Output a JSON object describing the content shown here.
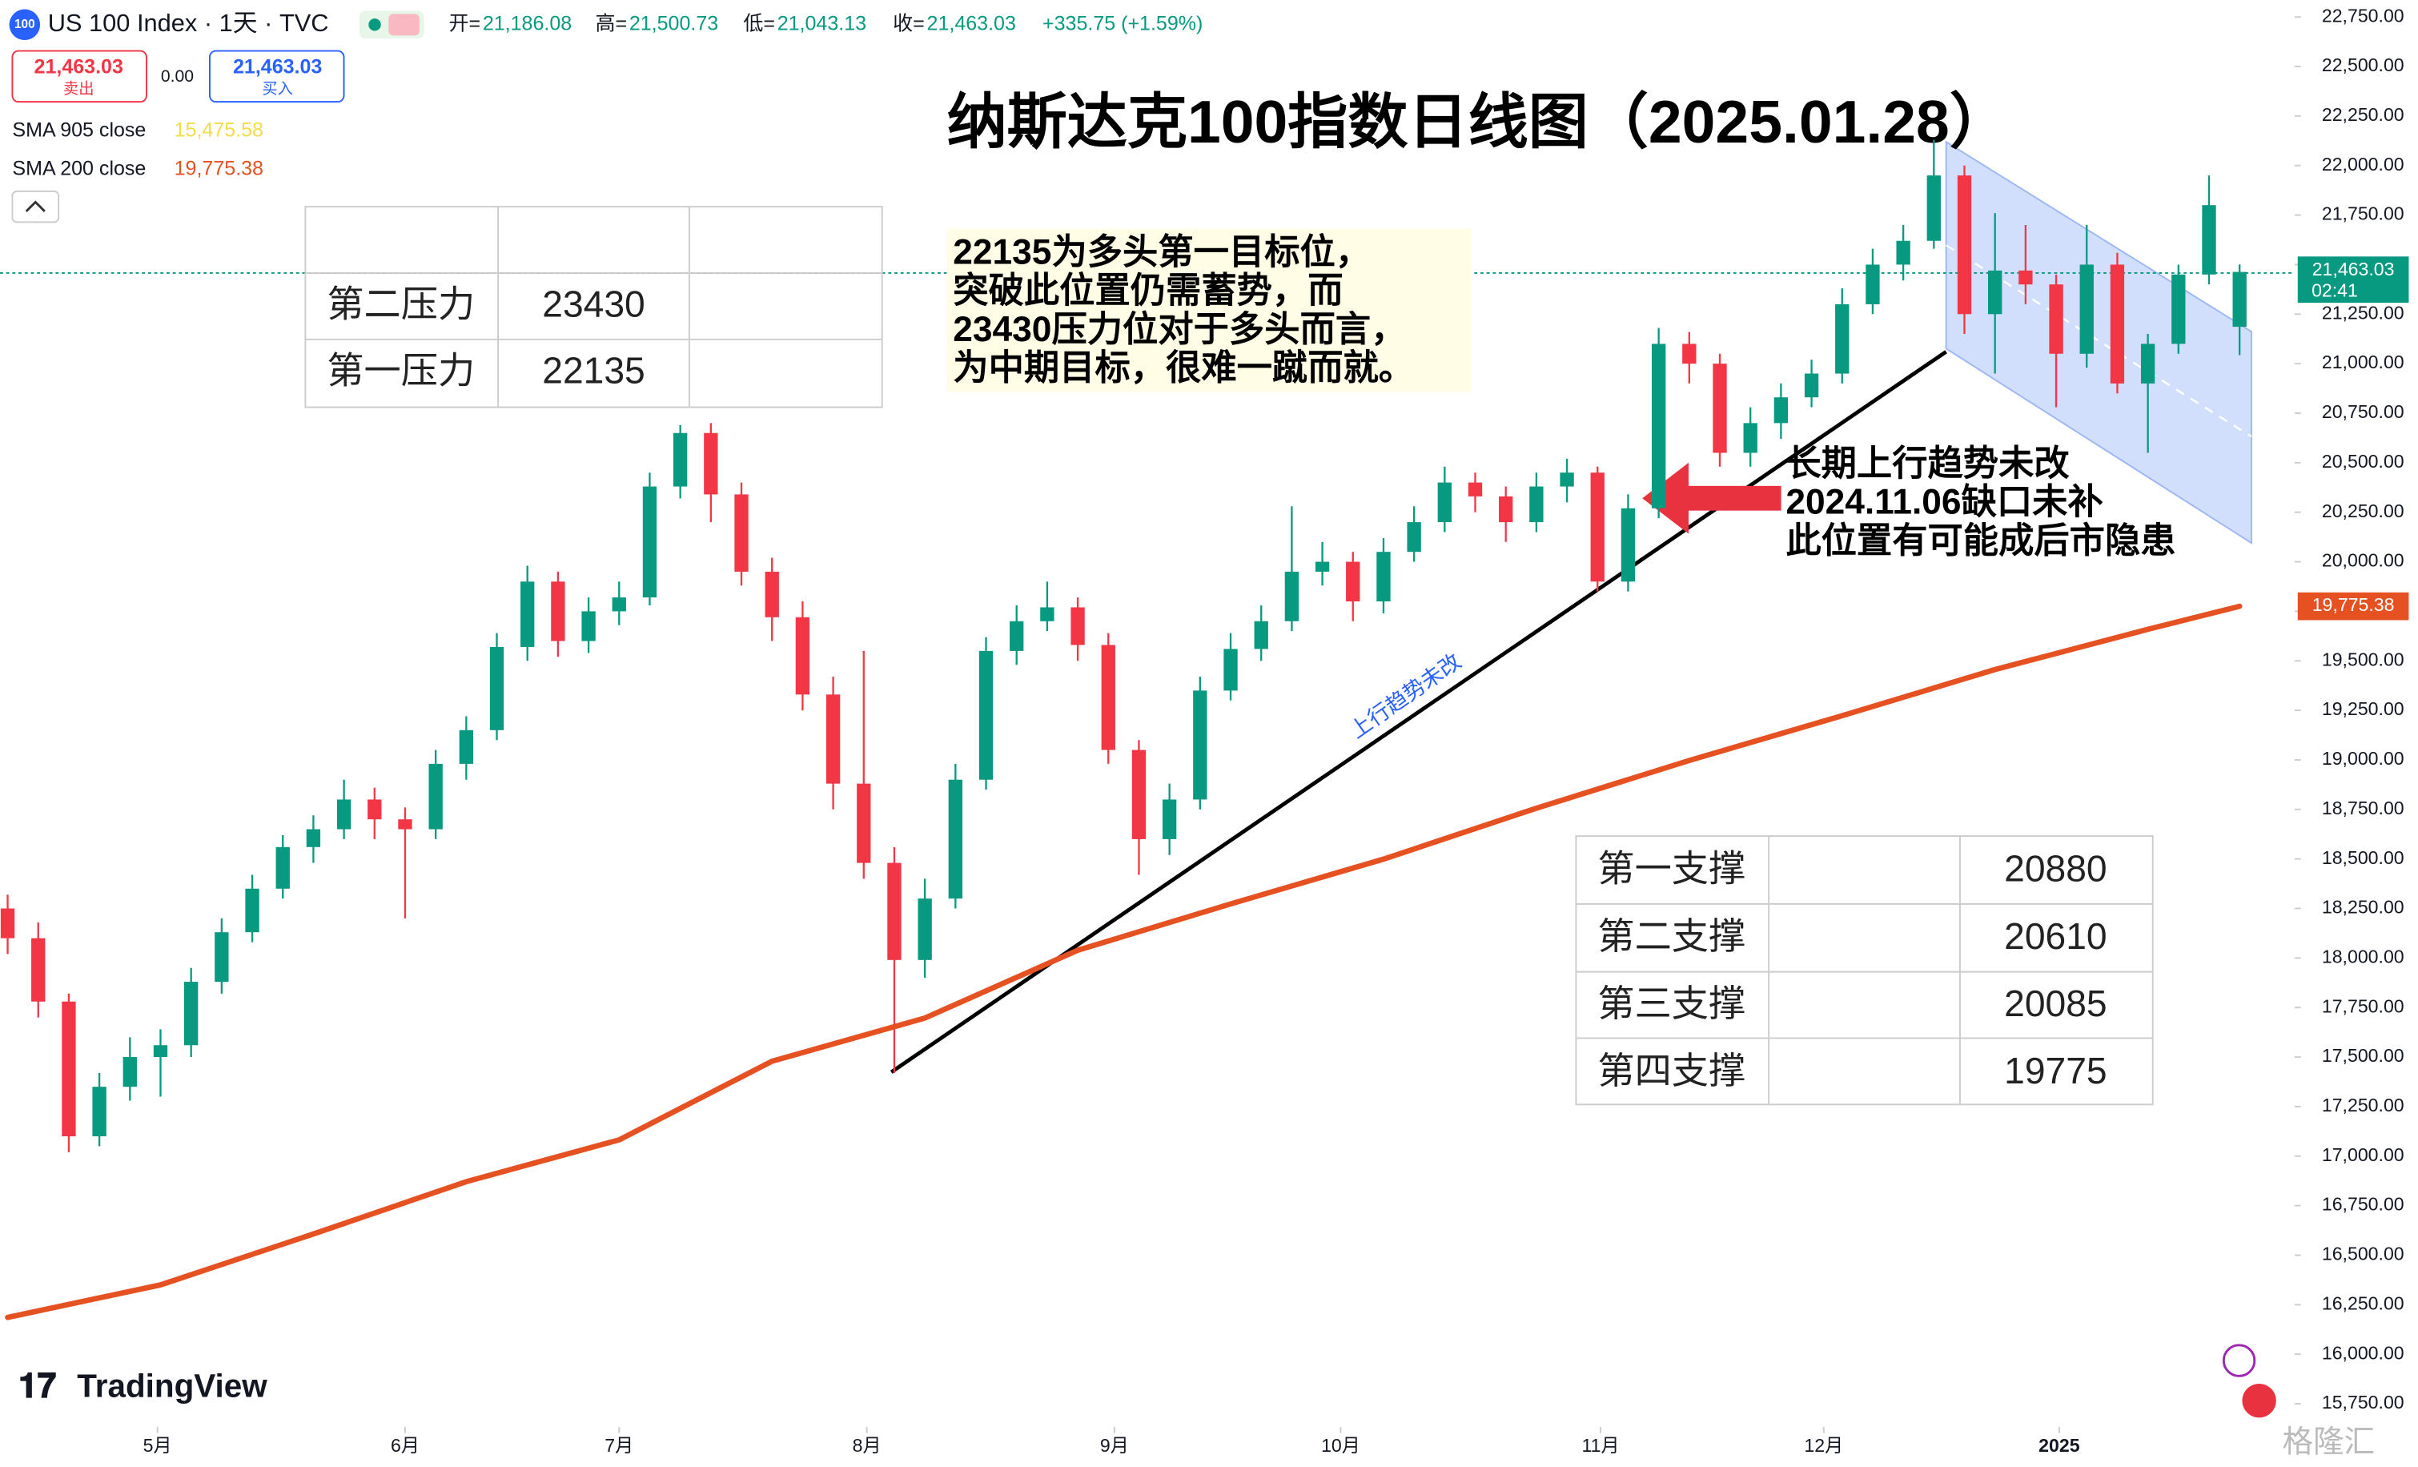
{
  "header": {
    "logo": "100",
    "symbol": "US 100 Index · 1天 · TVC",
    "ohlc": [
      [
        "开=",
        "21,186.08"
      ],
      [
        "高=",
        "21,500.73"
      ],
      [
        "低=",
        "21,043.13"
      ],
      [
        "收=",
        "21,463.03"
      ]
    ],
    "change": "+335.75 (+1.59%)",
    "sell_price": "21,463.03",
    "sell": "卖出",
    "spread": "0.00",
    "buy_price": "21,463.03",
    "buy": "买入",
    "indicators": [
      {
        "name": "SMA 905 close",
        "value": "15,475.58",
        "color": "#f2dc4b"
      },
      {
        "name": "SMA 200 close",
        "value": "19,775.38",
        "color": "#e65122"
      }
    ]
  },
  "chart_data": {
    "type": "candlestick",
    "title": "纳斯达克100指数日线图（2025.01.28）",
    "up_color": "#089981",
    "down_color": "#f23645",
    "xlim": [
      -0.25,
      74.8
    ],
    "xticks": [
      {
        "value": 4.9,
        "label": "5月"
      },
      {
        "value": 13,
        "label": "6月"
      },
      {
        "value": 20,
        "label": "7月"
      },
      {
        "value": 28.1,
        "label": "8月"
      },
      {
        "value": 36.2,
        "label": "9月"
      },
      {
        "value": 43.6,
        "label": "10月"
      },
      {
        "value": 52.1,
        "label": "11月"
      },
      {
        "value": 59.4,
        "label": "12月"
      },
      {
        "value": 67.1,
        "label": "2025"
      }
    ],
    "ylim": [
      15750,
      22750
    ],
    "yticks": [
      {
        "value": 15750,
        "label": "15,750.00"
      },
      {
        "value": 16000,
        "label": "16,000.00"
      },
      {
        "value": 16250,
        "label": "16,250.00"
      },
      {
        "value": 16500,
        "label": "16,500.00"
      },
      {
        "value": 16750,
        "label": "16,750.00"
      },
      {
        "value": 17000,
        "label": "17,000.00"
      },
      {
        "value": 17250,
        "label": "17,250.00"
      },
      {
        "value": 17500,
        "label": "17,500.00"
      },
      {
        "value": 17750,
        "label": "17,750.00"
      },
      {
        "value": 18000,
        "label": "18,000.00"
      },
      {
        "value": 18250,
        "label": "18,250.00"
      },
      {
        "value": 18500,
        "label": "18,500.00"
      },
      {
        "value": 18750,
        "label": "18,750.00"
      },
      {
        "value": 19000,
        "label": "19,000.00"
      },
      {
        "value": 19250,
        "label": "19,250.00"
      },
      {
        "value": 19500,
        "label": "19,500.00"
      },
      {
        "value": 19750,
        "label": "19,750.00"
      },
      {
        "value": 20000,
        "label": "20,000.00"
      },
      {
        "value": 20250,
        "label": "20,250.00"
      },
      {
        "value": 20500,
        "label": "20,500.00"
      },
      {
        "value": 20750,
        "label": "20,750.00"
      },
      {
        "value": 21000,
        "label": "21,000.00"
      },
      {
        "value": 21250,
        "label": "21,250.00"
      },
      {
        "value": 21500,
        "label": "21,500.00"
      },
      {
        "value": 21750,
        "label": "21,750.00"
      },
      {
        "value": 22000,
        "label": "22,000.00"
      },
      {
        "value": 22250,
        "label": "22,250.00"
      },
      {
        "value": 22500,
        "label": "22,500.00"
      },
      {
        "value": 22750,
        "label": "22,750.00"
      }
    ],
    "candles": [
      [
        18250,
        18320,
        18020,
        18100
      ],
      [
        18100,
        18180,
        17700,
        17780
      ],
      [
        17780,
        17820,
        17020,
        17100
      ],
      [
        17100,
        17420,
        17050,
        17350
      ],
      [
        17350,
        17600,
        17280,
        17500
      ],
      [
        17500,
        17640,
        17300,
        17560
      ],
      [
        17560,
        17950,
        17500,
        17880
      ],
      [
        17880,
        18200,
        17820,
        18130
      ],
      [
        18130,
        18420,
        18080,
        18350
      ],
      [
        18350,
        18620,
        18300,
        18560
      ],
      [
        18560,
        18720,
        18480,
        18650
      ],
      [
        18650,
        18900,
        18600,
        18800
      ],
      [
        18800,
        18860,
        18600,
        18700
      ],
      [
        18700,
        18760,
        18200,
        18650
      ],
      [
        18650,
        19050,
        18600,
        18980
      ],
      [
        18980,
        19220,
        18900,
        19150
      ],
      [
        19150,
        19640,
        19100,
        19570
      ],
      [
        19570,
        19980,
        19500,
        19900
      ],
      [
        19900,
        19950,
        19520,
        19600
      ],
      [
        19600,
        19820,
        19540,
        19750
      ],
      [
        19750,
        19900,
        19680,
        19820
      ],
      [
        19820,
        20450,
        19780,
        20380
      ],
      [
        20380,
        20690,
        20320,
        20650
      ],
      [
        20650,
        20700,
        20200,
        20340
      ],
      [
        20340,
        20400,
        19880,
        19950
      ],
      [
        19950,
        20020,
        19600,
        19720
      ],
      [
        19720,
        19800,
        19250,
        19330
      ],
      [
        19330,
        19420,
        18750,
        18880
      ],
      [
        18880,
        19550,
        18400,
        18480
      ],
      [
        18480,
        18560,
        17420,
        17990
      ],
      [
        17990,
        18400,
        17900,
        18300
      ],
      [
        18300,
        18980,
        18250,
        18900
      ],
      [
        18900,
        19620,
        18850,
        19550
      ],
      [
        19550,
        19780,
        19480,
        19700
      ],
      [
        19700,
        19900,
        19650,
        19770
      ],
      [
        19770,
        19820,
        19500,
        19580
      ],
      [
        19580,
        19640,
        18980,
        19050
      ],
      [
        19050,
        19100,
        18420,
        18600
      ],
      [
        18600,
        18880,
        18520,
        18800
      ],
      [
        18800,
        19420,
        18750,
        19350
      ],
      [
        19350,
        19640,
        19300,
        19560
      ],
      [
        19560,
        19780,
        19500,
        19700
      ],
      [
        19700,
        20280,
        19650,
        19950
      ],
      [
        19950,
        20100,
        19880,
        20000
      ],
      [
        20000,
        20050,
        19700,
        19800
      ],
      [
        19800,
        20120,
        19740,
        20050
      ],
      [
        20050,
        20280,
        20000,
        20200
      ],
      [
        20200,
        20480,
        20150,
        20400
      ],
      [
        20400,
        20450,
        20250,
        20330
      ],
      [
        20330,
        20380,
        20100,
        20200
      ],
      [
        20200,
        20450,
        20150,
        20380
      ],
      [
        20380,
        20520,
        20300,
        20450
      ],
      [
        20450,
        20480,
        19850,
        19900
      ],
      [
        19900,
        20340,
        19850,
        20270
      ],
      [
        20270,
        21180,
        20220,
        21100
      ],
      [
        21100,
        21160,
        20900,
        21000
      ],
      [
        21000,
        21050,
        20480,
        20550
      ],
      [
        20550,
        20780,
        20480,
        20700
      ],
      [
        20700,
        20900,
        20620,
        20830
      ],
      [
        20830,
        21020,
        20780,
        20950
      ],
      [
        20950,
        21380,
        20900,
        21300
      ],
      [
        21300,
        21580,
        21250,
        21500
      ],
      [
        21500,
        21700,
        21420,
        21620
      ],
      [
        21620,
        22130,
        21580,
        21950
      ],
      [
        21950,
        22000,
        21150,
        21250
      ],
      [
        21250,
        21760,
        20950,
        21470
      ],
      [
        21470,
        21700,
        21300,
        21400
      ],
      [
        21400,
        21450,
        20780,
        21050
      ],
      [
        21050,
        21700,
        20980,
        21500
      ],
      [
        21500,
        21560,
        20850,
        20900
      ],
      [
        20900,
        21150,
        20550,
        21100
      ],
      [
        21100,
        21500,
        21050,
        21450
      ],
      [
        21450,
        21950,
        21400,
        21800
      ],
      [
        21186.08,
        21500.73,
        21043.13,
        21463.03
      ]
    ],
    "price_label": "21,463.03",
    "countdown": "02:41",
    "sma": {
      "name": "SMA 200 close",
      "color": "#e65122",
      "x": [
        0,
        5,
        10,
        15,
        20,
        25,
        30,
        35,
        40,
        45,
        50,
        55,
        60,
        65,
        70,
        73
      ],
      "values": [
        16186,
        16350,
        16607,
        16871,
        17082,
        17479,
        17697,
        18039,
        18273,
        18499,
        18756,
        18997,
        19223,
        19456,
        19659,
        19775.38
      ],
      "value_label": "19,775.38"
    }
  },
  "annotations": {
    "target": [
      "22135为多头第一目标位，",
      "突破此位置仍需蓄势，而",
      "23430压力位对于多头而言，",
      "为中期目标，很难一蹴而就。"
    ],
    "gap": [
      "长期上行趋势未改",
      "2024.11.06缺口未补",
      "此位置有可能成后市隐患"
    ],
    "trend": "上行趋势未改"
  },
  "resistance_table": [
    [
      "第二压力",
      23430
    ],
    [
      "第一压力",
      22135
    ]
  ],
  "support_table": [
    [
      "第一支撑",
      20880
    ],
    [
      "第二支撑",
      20610
    ],
    [
      "第三支撑",
      20085
    ],
    [
      "第四支撑",
      19775
    ]
  ],
  "brand": "TradingView",
  "watermark": "格隆汇"
}
